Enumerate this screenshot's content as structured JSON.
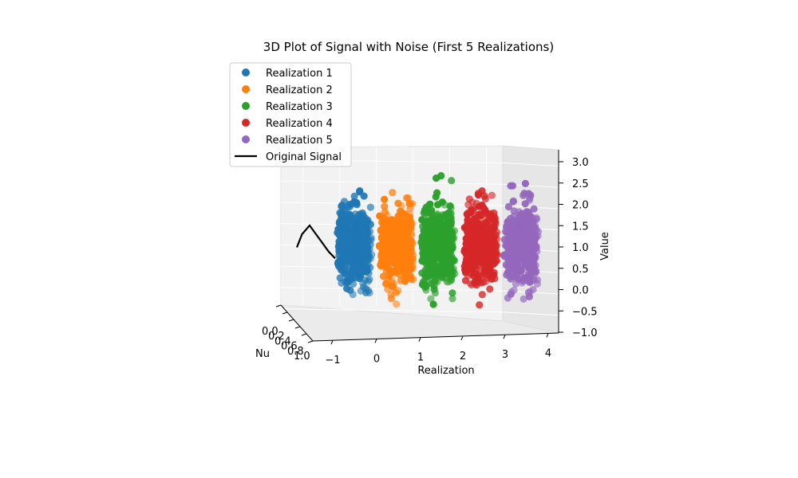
{
  "chart_data": {
    "type": "scatter",
    "title": "3D Plot of Signal with Noise (First 5 Realizations)",
    "xlabel": "Realization",
    "ylabel": "Nu",
    "zlabel": "Value",
    "x_ticks": [
      "−1",
      "0",
      "1",
      "2",
      "3",
      "4"
    ],
    "y_ticks": [
      "0.0",
      "0.2",
      "0.4",
      "0.6",
      "0.8",
      "1.0"
    ],
    "z_ticks": [
      "−1.0",
      "−0.5",
      "0.0",
      "0.5",
      "1.0",
      "1.5",
      "2.0",
      "2.5",
      "3.0"
    ],
    "xlim": [
      -1.2,
      4.2
    ],
    "ylim": [
      0,
      1
    ],
    "zlim": [
      -1.2,
      3.2
    ],
    "grid": true,
    "legend_position": "upper-left",
    "series": [
      {
        "name": "Realization 1",
        "x": 0,
        "color": "#1f77b4",
        "z_mean": 1.0,
        "z_spread": 0.45,
        "points": 450
      },
      {
        "name": "Realization 2",
        "x": 1,
        "color": "#ff7f0e",
        "z_mean": 1.0,
        "z_spread": 0.45,
        "points": 450
      },
      {
        "name": "Realization 3",
        "x": 2,
        "color": "#2ca02c",
        "z_mean": 1.0,
        "z_spread": 0.45,
        "points": 450
      },
      {
        "name": "Realization 4",
        "x": 3,
        "color": "#d62728",
        "z_mean": 1.0,
        "z_spread": 0.45,
        "points": 450
      },
      {
        "name": "Realization 5",
        "x": 4,
        "color": "#9467bd",
        "z_mean": 1.0,
        "z_spread": 0.45,
        "points": 450
      }
    ],
    "signal": {
      "name": "Original Signal",
      "color": "#000000",
      "z": [
        0.9,
        1.2,
        1.4,
        1.2,
        1.0,
        0.8,
        0.65
      ]
    }
  }
}
